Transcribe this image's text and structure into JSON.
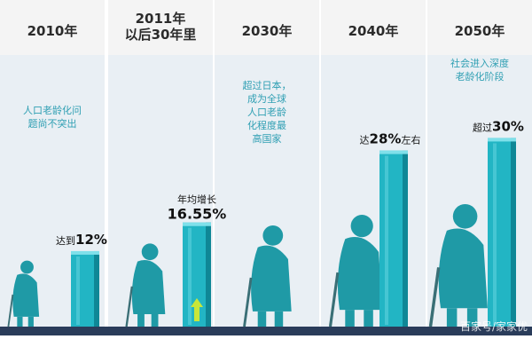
{
  "colors": {
    "bar": "#22b5c4",
    "bar_side": "#0f8796",
    "bar_top": "#7fe0ea",
    "silhouette": "#1f9aa6",
    "column_bg": "#e9eff4",
    "header": "#f4f4f4",
    "floor": "#2a3c5a",
    "arrow": "#c8e63a"
  },
  "chart_data": {
    "type": "bar",
    "categories": [
      "2010年",
      "2011年\n以后30年里",
      "2030年",
      "2040年",
      "2050年"
    ],
    "ylim": [
      0,
      35
    ],
    "grid": false,
    "bars": [
      {
        "column": 0,
        "value": 12,
        "prefix": "达到",
        "label": "12%"
      },
      {
        "column": 1,
        "value": 16.55,
        "prefix": "年均增长",
        "label": "16.55%",
        "arrow": "up-arrow-icon"
      },
      {
        "column": 3,
        "value": 28,
        "prefix": "达",
        "label": "28%",
        "suffix": "左右"
      },
      {
        "column": 4,
        "value": 30,
        "prefix": "超过",
        "label": "30%"
      }
    ],
    "annotations": [
      {
        "column": 0,
        "text": "人口老龄化问\n题尚不突出"
      },
      {
        "column": 2,
        "text": "超过日本，\n成为全球\n人口老龄\n化程度最\n高国家"
      },
      {
        "column": 4,
        "text": "社会进入深度\n老龄化阶段"
      }
    ],
    "figures": [
      "elderly-person-icon",
      "elderly-person-icon",
      "elderly-person-icon",
      "elderly-person-icon",
      "elderly-person-icon"
    ]
  },
  "watermark": "百家号/家家优"
}
